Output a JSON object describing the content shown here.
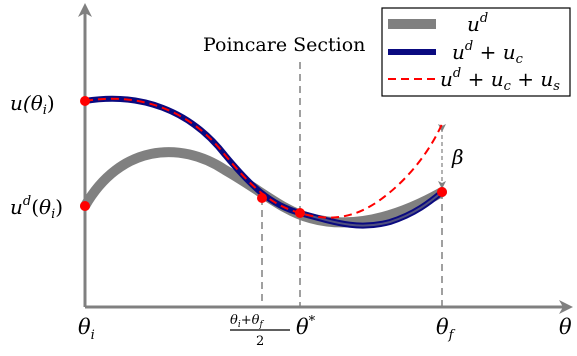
{
  "diagram": {
    "section_label": "Poincare Section",
    "axes": {
      "x_symbol": "θ",
      "y_tick_top": {
        "fn": "u(",
        "var": "θ",
        "sub": "i",
        "close": ")"
      },
      "y_tick_bottom": {
        "fn": "u",
        "sup": "d",
        "open": "(",
        "var": "θ",
        "sub": "i",
        "close": ")"
      }
    },
    "x_ticks": {
      "theta_i": {
        "var": "θ",
        "sub": "i"
      },
      "midpoint": {
        "num_a": "θ",
        "sub_a": "i",
        "plus": "+",
        "num_b": "θ",
        "sub_b": "f",
        "den": "2"
      },
      "theta_star": {
        "var": "θ",
        "sup": "*"
      },
      "theta_f": {
        "var": "θ",
        "sub": "f"
      }
    },
    "beta_label": "β",
    "legend": [
      {
        "text": "u",
        "sup": "d",
        "rest": "",
        "color": "#808080",
        "style": "thick-solid"
      },
      {
        "text": "u",
        "sup": "d",
        "rest": " + u",
        "sub1": "c",
        "color": "#0a0a80",
        "style": "solid"
      },
      {
        "text": "u",
        "sup": "d",
        "rest": " + u",
        "sub1": "c",
        "rest2": " + u",
        "sub2": "s",
        "color": "#ff0000",
        "style": "dashed"
      }
    ],
    "colors": {
      "axis": "#808080",
      "ud_curve": "#808080",
      "controlled_curve": "#0a0a80",
      "stabilized_curve": "#ff0000",
      "points": "#ff0000",
      "guides": "#808080"
    }
  }
}
